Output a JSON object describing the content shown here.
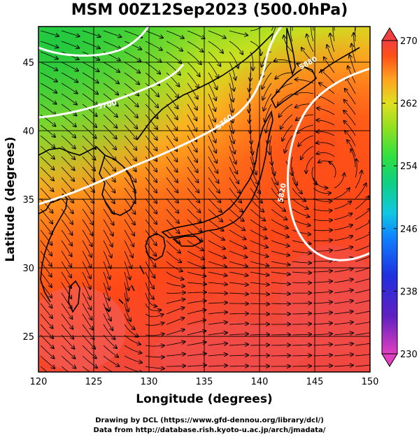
{
  "title": "MSM 00Z12Sep2023 (500.0hPa)",
  "x_axis": {
    "label": "Longitude (degrees)",
    "ticks": [
      120,
      125,
      130,
      135,
      140,
      145,
      150
    ],
    "range": [
      120,
      150
    ]
  },
  "y_axis": {
    "label": "Latitude  (degrees)",
    "ticks": [
      25,
      30,
      35,
      40,
      45
    ],
    "range": [
      22.4,
      47.6
    ]
  },
  "colorbar": {
    "ticks": [
      270,
      262,
      254,
      246,
      238,
      230
    ],
    "min": 230,
    "max": 270,
    "colors": [
      "#e040c0",
      "#6020c0",
      "#2030e0",
      "#1080ff",
      "#10c8e0",
      "#10d080",
      "#30e040",
      "#90e020",
      "#e0e020",
      "#ffa020",
      "#ff5018",
      "#f04040"
    ]
  },
  "contours": [
    {
      "label": "5700",
      "color": "#ffffff"
    },
    {
      "label": "5760",
      "color": "#ffffff"
    },
    {
      "label": "5820",
      "color": "#ffffff"
    },
    {
      "label": "5880",
      "color": "#ffffff"
    }
  ],
  "credits": {
    "line1": "Drawing by DCL (https://www.gfd-dennou.org/library/dcl/)",
    "line2": "Data from http://database.rish.kyoto-u.ac.jp/arch/jmadata/"
  }
}
